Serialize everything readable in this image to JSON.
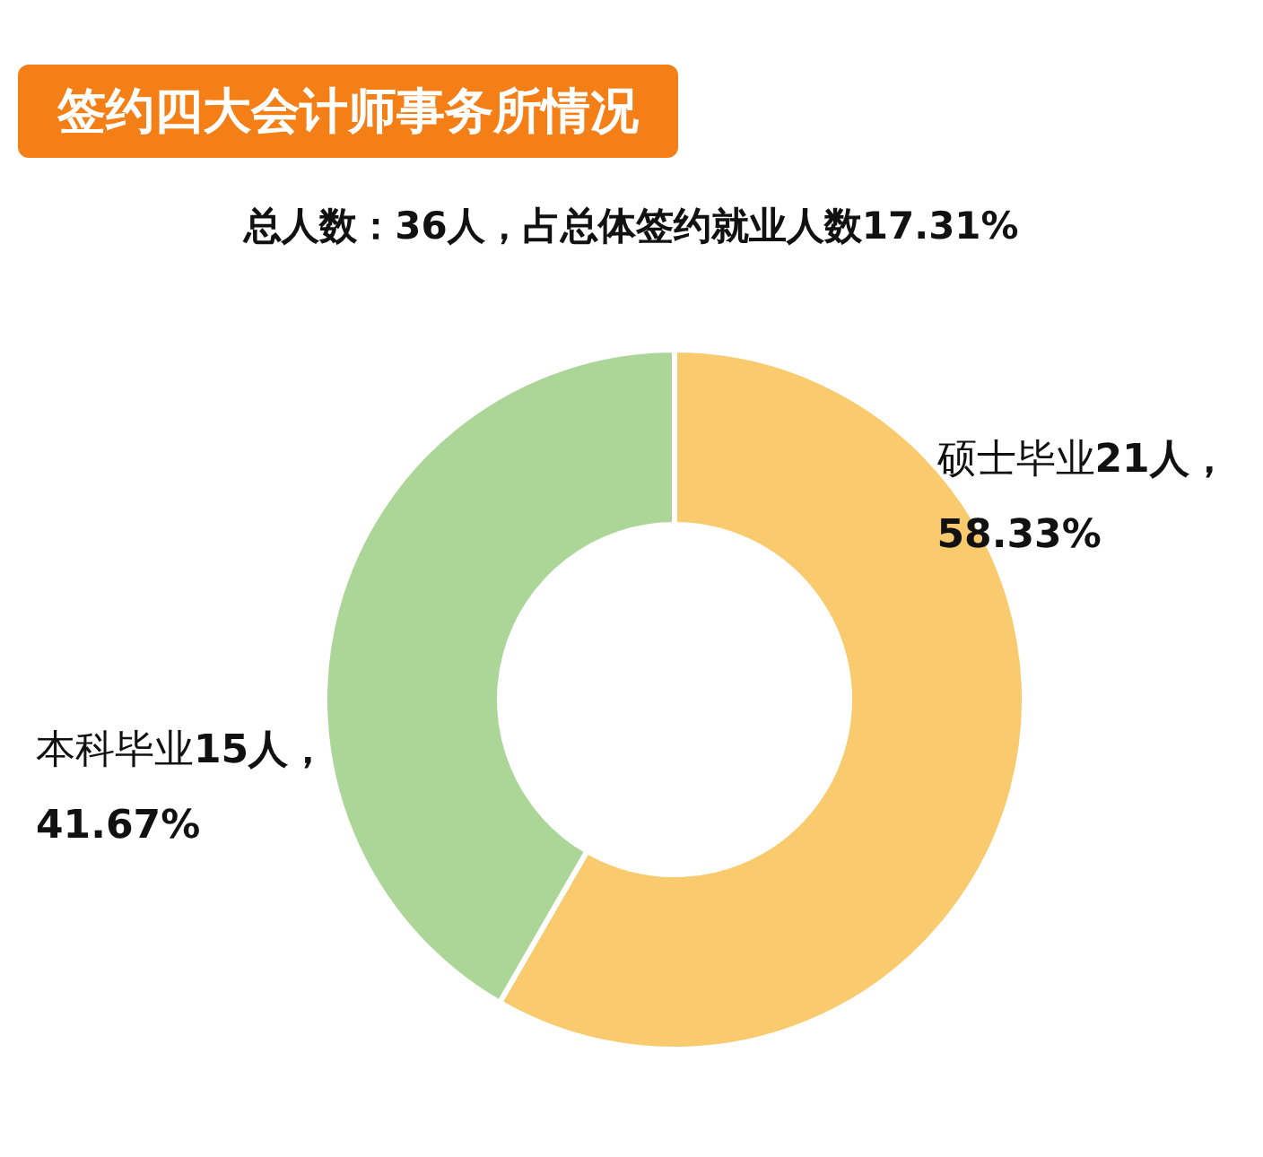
{
  "chart_data": {
    "type": "donut",
    "title": "签约四大会计师事务所情况",
    "subtitle": "总人数：36人，占总体签约就业人数17.31%",
    "categories": [
      "硕士毕业",
      "本科毕业"
    ],
    "values": [
      21,
      15
    ],
    "colors": [
      "#f9cb6e",
      "#acd598"
    ],
    "value_labels": [
      "21人，\n58.33%",
      "15人，\n41.67%"
    ],
    "legend": false
  }
}
